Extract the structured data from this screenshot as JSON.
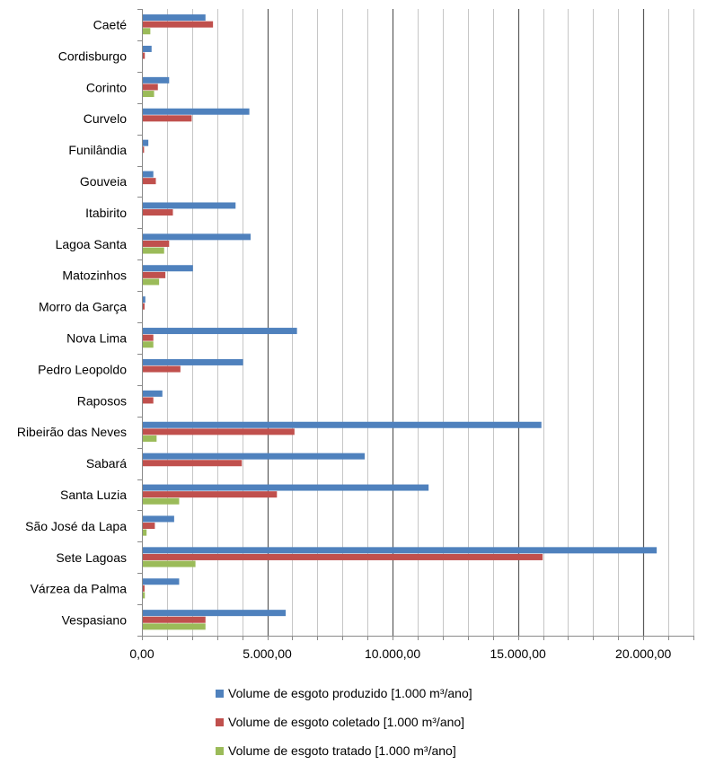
{
  "chart_data": {
    "type": "bar",
    "orientation": "horizontal",
    "title": "",
    "xlabel": "",
    "ylabel": "",
    "xlim": [
      0,
      22000
    ],
    "tick_values": [
      0,
      5000,
      10000,
      15000,
      20000
    ],
    "tick_labels": [
      "0,00",
      "5.000,00",
      "10.000,00",
      "15.000,00",
      "20.000,00"
    ],
    "grid": true,
    "legend_position": "bottom",
    "categories": [
      "Caeté",
      "Cordisburgo",
      "Corinto",
      "Curvelo",
      "Funilândia",
      "Gouveia",
      "Itabirito",
      "Lagoa Santa",
      "Matozinhos",
      "Morro da Garça",
      "Nova Lima",
      "Pedro Leopoldo",
      "Raposos",
      "Ribeirão das Neves",
      "Sabará",
      "Santa Luzia",
      "São José da Lapa",
      "Sete Lagoas",
      "Várzea da Palma",
      "Vespasiano"
    ],
    "series": [
      {
        "name": "Volume de esgoto produzido [1.000 m³/ano]",
        "color": "#4F81BD",
        "values": [
          2500,
          350,
          1050,
          4250,
          220,
          420,
          3700,
          4300,
          2000,
          100,
          6150,
          4000,
          780,
          15900,
          8850,
          11400,
          1250,
          20500,
          1450,
          5700
        ]
      },
      {
        "name": "Volume de esgoto coletado [1.000 m³/ano]",
        "color": "#C0504D",
        "values": [
          2800,
          80,
          600,
          1950,
          50,
          520,
          1200,
          1050,
          900,
          70,
          420,
          1500,
          420,
          6050,
          3950,
          5350,
          480,
          15950,
          70,
          2500
        ]
      },
      {
        "name": "Volume de esgoto tratado [1.000 m³/ano]",
        "color": "#9BBB59",
        "values": [
          300,
          0,
          450,
          0,
          0,
          0,
          0,
          850,
          650,
          0,
          420,
          0,
          0,
          550,
          0,
          1450,
          150,
          2100,
          80,
          2500
        ]
      }
    ]
  }
}
